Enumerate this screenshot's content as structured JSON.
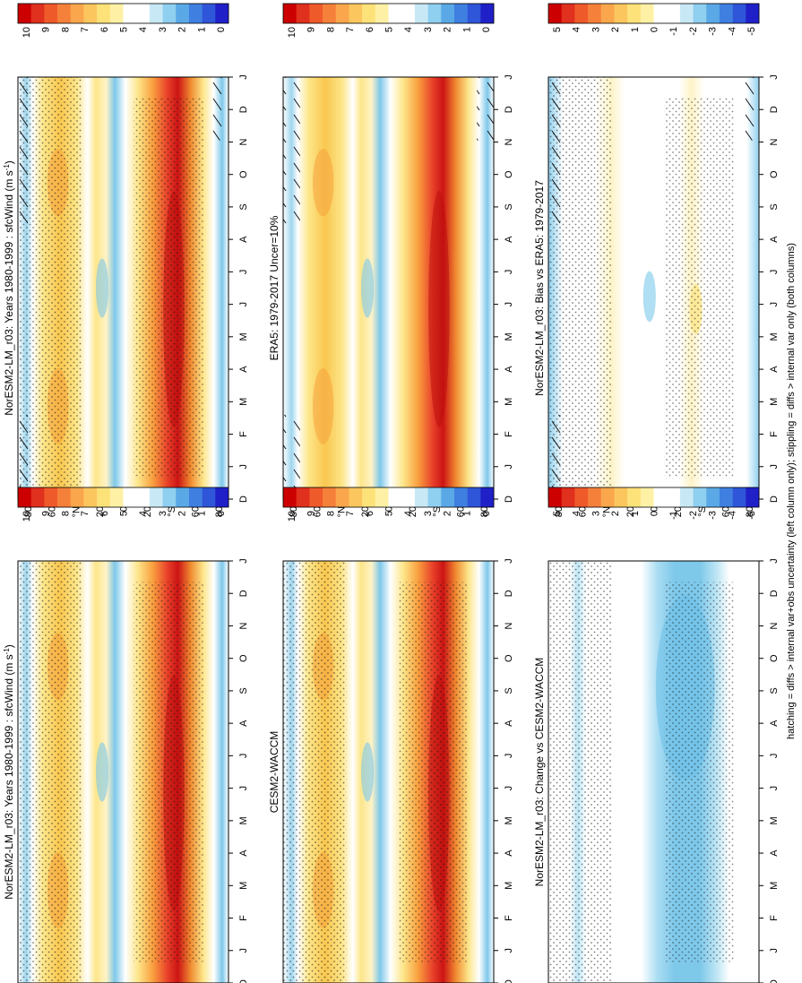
{
  "footnote": "hatching = diffs > internal var+obs uncertainty (left column only); stippling = diffs > internal var only (both columns)",
  "chart_data": [
    {
      "type": "heatmap",
      "panel": "left-top",
      "title": "NorESM2-LM_r03: Years 1980-1999 : sfcWind (m s",
      "title_superscript": "-1",
      "title_suffix": ")",
      "x_ticks": [
        "D",
        "J",
        "F",
        "M",
        "A",
        "M",
        "J",
        "J",
        "A",
        "S",
        "O",
        "N",
        "D",
        "J"
      ],
      "y_ticks": [
        "80",
        "60",
        "°N",
        "20",
        "0",
        "20",
        "°S",
        "60",
        "80"
      ],
      "colorbar_ticks": [
        "10",
        "9",
        "8",
        "7",
        "6",
        "5",
        "4",
        "3",
        "2",
        "1",
        "0"
      ],
      "vrange": [
        0,
        10
      ],
      "overlay": "stippling-hatching"
    },
    {
      "type": "heatmap",
      "panel": "left-middle",
      "title": "ERA5: 1979-2017 Uncer=10%",
      "x_ticks": [
        "D",
        "J",
        "F",
        "M",
        "A",
        "M",
        "J",
        "J",
        "A",
        "S",
        "O",
        "N",
        "D",
        "J"
      ],
      "y_ticks": [
        "80",
        "60",
        "°N",
        "20",
        "0",
        "20",
        "°S",
        "60",
        "80"
      ],
      "colorbar_ticks": [
        "10",
        "9",
        "8",
        "7",
        "6",
        "5",
        "4",
        "3",
        "2",
        "1",
        "0"
      ],
      "vrange": [
        0,
        10
      ],
      "overlay": "hatching"
    },
    {
      "type": "heatmap",
      "panel": "left-bottom",
      "title": "NorESM2-LM_r03: Bias vs ERA5: 1979-2017",
      "x_ticks": [
        "D",
        "J",
        "F",
        "M",
        "A",
        "M",
        "J",
        "J",
        "A",
        "S",
        "O",
        "N",
        "D",
        "J"
      ],
      "y_ticks": [
        "80",
        "60",
        "°N",
        "20",
        "0",
        "20",
        "°S",
        "60",
        "80"
      ],
      "colorbar_ticks": [
        "5",
        "4",
        "3",
        "2",
        "1",
        "0",
        "-1",
        "-2",
        "-3",
        "-4",
        "-5"
      ],
      "vrange": [
        -5,
        5
      ],
      "overlay": "stippling-hatching"
    },
    {
      "type": "heatmap",
      "panel": "right-top",
      "title": "NorESM2-LM_r03: Years 1980-1999 : sfcWind (m s",
      "title_superscript": "-1",
      "title_suffix": ")",
      "x_ticks": [
        "D",
        "J",
        "F",
        "M",
        "A",
        "M",
        "J",
        "J",
        "A",
        "S",
        "O",
        "N",
        "D",
        "J"
      ],
      "y_ticks": [
        "80",
        "60",
        "°N",
        "20",
        "0",
        "20",
        "°S",
        "60",
        "80"
      ],
      "colorbar_ticks": [
        "10",
        "9",
        "8",
        "7",
        "6",
        "5",
        "4",
        "3",
        "2",
        "1",
        "0"
      ],
      "vrange": [
        0,
        10
      ],
      "overlay": "stippling"
    },
    {
      "type": "heatmap",
      "panel": "right-middle",
      "title": "CESM2-WACCM",
      "x_ticks": [
        "D",
        "J",
        "F",
        "M",
        "A",
        "M",
        "J",
        "J",
        "A",
        "S",
        "O",
        "N",
        "D",
        "J"
      ],
      "y_ticks": [
        "80",
        "60",
        "°N",
        "20",
        "0",
        "20",
        "°S",
        "60",
        "80"
      ],
      "colorbar_ticks": [
        "10",
        "9",
        "8",
        "7",
        "6",
        "5",
        "4",
        "3",
        "2",
        "1",
        "0"
      ],
      "vrange": [
        0,
        10
      ],
      "overlay": "stippling"
    },
    {
      "type": "heatmap",
      "panel": "right-bottom",
      "title": "NorESM2-LM_r03: Change vs CESM2-WACCM",
      "x_ticks": [
        "D",
        "J",
        "F",
        "M",
        "A",
        "M",
        "J",
        "J",
        "A",
        "S",
        "O",
        "N",
        "D",
        "J"
      ],
      "y_ticks": [
        "80",
        "60",
        "°N",
        "20",
        "0",
        "20",
        "°S",
        "60",
        "80"
      ],
      "colorbar_ticks": [
        "5",
        "4",
        "3",
        "2",
        "1",
        "0",
        "-1",
        "-2",
        "-3",
        "-4",
        "-5"
      ],
      "vrange": [
        -5,
        5
      ],
      "overlay": "stippling"
    }
  ]
}
